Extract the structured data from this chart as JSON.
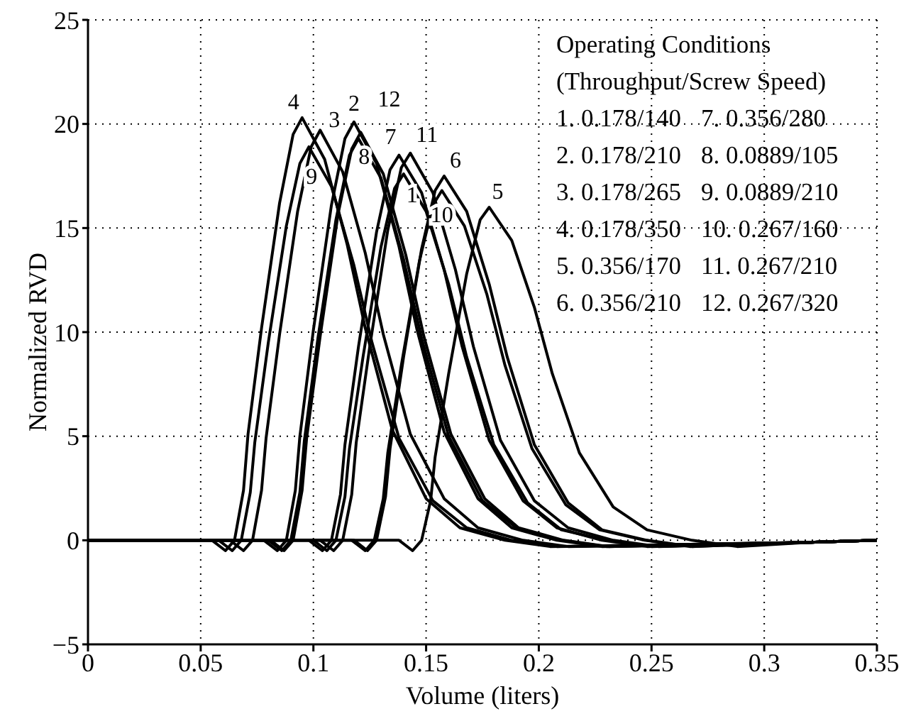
{
  "chart_data": {
    "type": "line",
    "xlabel": "Volume (liters)",
    "ylabel": "Normalized RVD",
    "xlim": [
      0,
      0.35
    ],
    "ylim": [
      -5,
      25
    ],
    "xticks": [
      0,
      0.05,
      0.1,
      0.15,
      0.2,
      0.25,
      0.3,
      0.35
    ],
    "yticks": [
      -5,
      0,
      5,
      10,
      15,
      20,
      25
    ],
    "grid": true,
    "legend": false,
    "marker": "none",
    "line_style": "solid",
    "annotations": [
      "Operating Conditions",
      "(Throughput/Screw Speed)",
      "1. 0.178/140",
      "2. 0.178/210",
      "3. 0.178/265",
      "4. 0.178/350",
      "5. 0.356/170",
      "6. 0.356/210",
      "7. 0.356/280",
      "8. 0.0889/105",
      "9. 0.0889/210",
      "10. 0.267/160",
      "11. 0.267/210",
      "12. 0.267/320"
    ],
    "series": [
      {
        "name": "1",
        "color": "#000000",
        "x": [
          0,
          0.1,
          0.106,
          0.11,
          0.114,
          0.116,
          0.122,
          0.13,
          0.136,
          0.14,
          0.15,
          0.16,
          0.168,
          0.18,
          0.195,
          0.21,
          0.23,
          0.25,
          0.32,
          0.35
        ],
        "values": [
          0,
          0,
          -0.5,
          0,
          2.1,
          4.4,
          8.8,
          14.1,
          16.9,
          17.6,
          15.8,
          12.3,
          8.8,
          4.6,
          1.8,
          0.5,
          0,
          -0.3,
          -0.1,
          0
        ]
      },
      {
        "name": "2",
        "color": "#000000",
        "x": [
          0,
          0.078,
          0.084,
          0.088,
          0.092,
          0.094,
          0.1,
          0.108,
          0.114,
          0.118,
          0.128,
          0.138,
          0.146,
          0.158,
          0.173,
          0.188,
          0.208,
          0.228,
          0.32,
          0.35
        ],
        "values": [
          0,
          0,
          -0.5,
          0,
          2.4,
          5.0,
          10.1,
          16.1,
          19.3,
          20.1,
          18.1,
          14.1,
          10.1,
          5.2,
          2.0,
          0.6,
          0,
          -0.3,
          -0.1,
          0
        ]
      },
      {
        "name": "3",
        "color": "#000000",
        "x": [
          0,
          0.063,
          0.069,
          0.073,
          0.077,
          0.079,
          0.085,
          0.093,
          0.099,
          0.103,
          0.113,
          0.123,
          0.131,
          0.143,
          0.158,
          0.173,
          0.193,
          0.213,
          0.32,
          0.35
        ],
        "values": [
          0,
          0,
          -0.5,
          0,
          2.4,
          4.9,
          9.9,
          15.8,
          18.9,
          19.7,
          17.7,
          13.8,
          9.9,
          5.1,
          2.0,
          0.6,
          0,
          -0.3,
          -0.1,
          0
        ]
      },
      {
        "name": "4",
        "color": "#000000",
        "x": [
          0,
          0.055,
          0.061,
          0.065,
          0.069,
          0.071,
          0.077,
          0.085,
          0.091,
          0.095,
          0.105,
          0.115,
          0.123,
          0.135,
          0.15,
          0.165,
          0.185,
          0.205,
          0.32,
          0.35
        ],
        "values": [
          0,
          0,
          -0.5,
          0,
          2.4,
          5.1,
          10.2,
          16.2,
          19.5,
          20.3,
          18.3,
          14.2,
          10.2,
          5.3,
          2.0,
          0.6,
          0,
          -0.3,
          -0.1,
          0
        ]
      },
      {
        "name": "5",
        "color": "#000000",
        "x": [
          0,
          0.138,
          0.144,
          0.148,
          0.152,
          0.154,
          0.16,
          0.168,
          0.174,
          0.178,
          0.188,
          0.198,
          0.206,
          0.218,
          0.233,
          0.248,
          0.268,
          0.288,
          0.32,
          0.35
        ],
        "values": [
          0,
          0,
          -0.5,
          0,
          1.9,
          4.0,
          8.0,
          12.8,
          15.4,
          16.0,
          14.4,
          11.2,
          8.0,
          4.2,
          1.6,
          0.5,
          0,
          -0.3,
          -0.1,
          0
        ]
      },
      {
        "name": "6",
        "color": "#000000",
        "x": [
          0,
          0.118,
          0.124,
          0.128,
          0.132,
          0.134,
          0.14,
          0.148,
          0.154,
          0.158,
          0.168,
          0.178,
          0.186,
          0.198,
          0.213,
          0.228,
          0.248,
          0.268,
          0.32,
          0.35
        ],
        "values": [
          0,
          0,
          -0.5,
          0,
          2.1,
          4.4,
          8.8,
          14.0,
          16.8,
          17.5,
          15.8,
          12.3,
          8.8,
          4.6,
          1.8,
          0.5,
          0,
          -0.3,
          -0.1,
          0
        ]
      },
      {
        "name": "7",
        "color": "#000000",
        "x": [
          0,
          0.098,
          0.104,
          0.108,
          0.112,
          0.114,
          0.12,
          0.128,
          0.134,
          0.138,
          0.148,
          0.158,
          0.166,
          0.178,
          0.193,
          0.208,
          0.228,
          0.248,
          0.32,
          0.35
        ],
        "values": [
          0,
          0,
          -0.5,
          0,
          2.2,
          4.6,
          9.3,
          14.8,
          17.8,
          18.5,
          16.7,
          13.0,
          9.3,
          4.8,
          1.9,
          0.6,
          0,
          -0.3,
          -0.1,
          0
        ]
      },
      {
        "name": "8",
        "color": "#000000",
        "x": [
          0,
          0.08,
          0.086,
          0.09,
          0.094,
          0.096,
          0.102,
          0.11,
          0.116,
          0.12,
          0.13,
          0.14,
          0.148,
          0.16,
          0.175,
          0.19,
          0.21,
          0.23,
          0.32,
          0.35
        ],
        "values": [
          0,
          0,
          -0.5,
          0,
          2.3,
          4.8,
          9.7,
          15.4,
          18.5,
          19.3,
          17.4,
          13.5,
          9.7,
          5.0,
          1.9,
          0.6,
          0,
          -0.3,
          -0.1,
          0
        ]
      },
      {
        "name": "9",
        "color": "#000000",
        "x": [
          0,
          0.058,
          0.064,
          0.068,
          0.072,
          0.074,
          0.08,
          0.088,
          0.094,
          0.098,
          0.108,
          0.118,
          0.126,
          0.138,
          0.153,
          0.168,
          0.188,
          0.208,
          0.32,
          0.35
        ],
        "values": [
          0,
          0,
          -0.5,
          0,
          2.3,
          4.7,
          9.5,
          15.1,
          18.1,
          18.9,
          17.0,
          13.2,
          9.5,
          4.9,
          1.9,
          0.6,
          0,
          -0.3,
          -0.1,
          0
        ]
      },
      {
        "name": "10",
        "color": "#000000",
        "x": [
          0,
          0.117,
          0.123,
          0.127,
          0.131,
          0.133,
          0.139,
          0.147,
          0.153,
          0.157,
          0.167,
          0.177,
          0.185,
          0.197,
          0.212,
          0.227,
          0.247,
          0.267,
          0.32,
          0.35
        ],
        "values": [
          0,
          0,
          -0.5,
          0,
          2.0,
          4.2,
          8.4,
          13.4,
          16.1,
          16.8,
          15.1,
          11.8,
          8.4,
          4.4,
          1.7,
          0.5,
          0,
          -0.3,
          -0.1,
          0
        ]
      },
      {
        "name": "11",
        "color": "#000000",
        "x": [
          0,
          0.103,
          0.109,
          0.113,
          0.117,
          0.119,
          0.125,
          0.133,
          0.139,
          0.143,
          0.153,
          0.163,
          0.171,
          0.183,
          0.198,
          0.213,
          0.233,
          0.253,
          0.32,
          0.35
        ],
        "values": [
          0,
          0,
          -0.5,
          0,
          2.2,
          4.7,
          9.3,
          14.9,
          17.9,
          18.6,
          16.7,
          13.0,
          9.3,
          4.8,
          1.9,
          0.6,
          0,
          -0.3,
          -0.1,
          0
        ]
      },
      {
        "name": "12",
        "color": "#000000",
        "x": [
          0,
          0.081,
          0.087,
          0.091,
          0.095,
          0.097,
          0.103,
          0.111,
          0.117,
          0.121,
          0.131,
          0.141,
          0.149,
          0.161,
          0.176,
          0.191,
          0.211,
          0.231,
          0.32,
          0.35
        ],
        "values": [
          0,
          0,
          -0.5,
          0,
          2.4,
          4.9,
          9.8,
          15.7,
          18.8,
          19.6,
          17.6,
          13.7,
          9.8,
          5.1,
          2.0,
          0.6,
          0,
          -0.3,
          -0.1,
          0
        ]
      }
    ]
  }
}
